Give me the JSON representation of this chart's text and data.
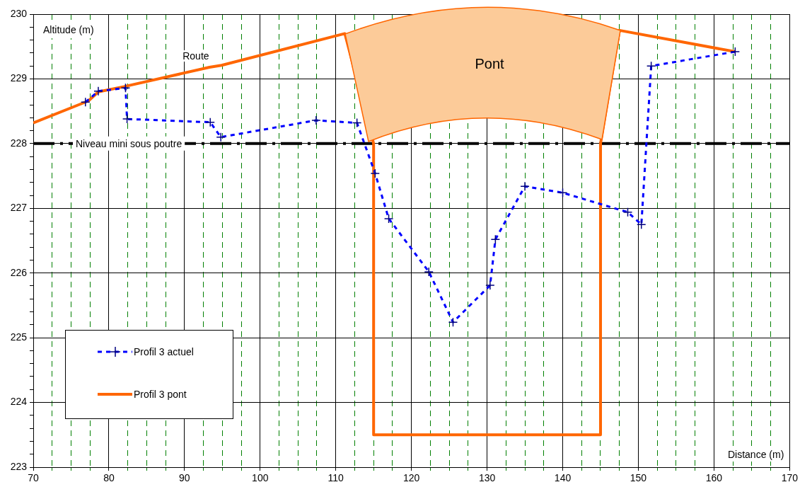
{
  "chart_data": {
    "type": "line",
    "xlabel": "Distance (m)",
    "ylabel": "Altitude (m)",
    "xlim": [
      70,
      170
    ],
    "xticks": [
      70,
      {
        "value": 72.5,
        "label": null
      },
      {
        "value": 75,
        "label": null
      },
      {
        "value": 77.5,
        "label": null
      },
      80,
      {
        "value": 82.5,
        "label": null
      },
      {
        "value": 85,
        "label": null
      },
      {
        "value": 87.5,
        "label": null
      },
      90,
      {
        "value": 92.5,
        "label": null
      },
      {
        "value": 95,
        "label": null
      },
      {
        "value": 97.5,
        "label": null
      },
      100,
      {
        "value": 102.5,
        "label": null
      },
      {
        "value": 105,
        "label": null
      },
      {
        "value": 107.5,
        "label": null
      },
      110,
      {
        "value": 112.5,
        "label": null
      },
      {
        "value": 115,
        "label": null
      },
      {
        "value": 117.5,
        "label": null
      },
      120,
      {
        "value": 122.5,
        "label": null
      },
      {
        "value": 125,
        "label": null
      },
      {
        "value": 127.5,
        "label": null
      },
      130,
      {
        "value": 132.5,
        "label": null
      },
      {
        "value": 135,
        "label": null
      },
      {
        "value": 137.5,
        "label": null
      },
      140,
      {
        "value": 142.5,
        "label": null
      },
      {
        "value": 145,
        "label": null
      },
      {
        "value": 147.5,
        "label": null
      },
      150,
      {
        "value": 152.5,
        "label": null
      },
      {
        "value": 155,
        "label": null
      },
      {
        "value": 157.5,
        "label": null
      },
      160,
      {
        "value": 162.5,
        "label": null
      },
      {
        "value": 165,
        "label": null
      },
      {
        "value": 167.5,
        "label": null
      },
      170
    ],
    "ylim": [
      223,
      230
    ],
    "yticks": [
      223,
      {
        "value": 223.2,
        "label": null
      },
      {
        "value": 223.4,
        "label": null
      },
      {
        "value": 223.6,
        "label": null
      },
      {
        "value": 223.8,
        "label": null
      },
      224,
      {
        "value": 224.2,
        "label": null
      },
      {
        "value": 224.4,
        "label": null
      },
      {
        "value": 224.6,
        "label": null
      },
      {
        "value": 224.8,
        "label": null
      },
      225,
      {
        "value": 225.2,
        "label": null
      },
      {
        "value": 225.4,
        "label": null
      },
      {
        "value": 225.6,
        "label": null
      },
      {
        "value": 225.8,
        "label": null
      },
      226,
      {
        "value": 226.2,
        "label": null
      },
      {
        "value": 226.4,
        "label": null
      },
      {
        "value": 226.6,
        "label": null
      },
      {
        "value": 226.8,
        "label": null
      },
      227,
      {
        "value": 227.2,
        "label": null
      },
      {
        "value": 227.4,
        "label": null
      },
      {
        "value": 227.6,
        "label": null
      },
      {
        "value": 227.8,
        "label": null
      },
      228,
      {
        "value": 228.2,
        "label": null
      },
      {
        "value": 228.4,
        "label": null
      },
      {
        "value": 228.6,
        "label": null
      },
      {
        "value": 228.8,
        "label": null
      },
      229,
      {
        "value": 229.2,
        "label": null
      },
      {
        "value": 229.4,
        "label": null
      },
      {
        "value": 229.6,
        "label": null
      },
      {
        "value": 229.8,
        "label": null
      },
      230
    ],
    "grid": true,
    "legend": "bottom left",
    "series": [
      {
        "name": "Profil 3 actuel",
        "color": "#0000ff",
        "marker": "cross",
        "line_style": "dashed",
        "x": [
          76.9,
          78.6,
          82.2,
          82.4,
          93.4,
          94.8,
          107.4,
          112.8,
          115.2,
          117.0,
          122.3,
          125.5,
          130.4,
          131.1,
          135.0,
          140.0,
          148.6,
          150.4,
          151.7,
          162.8
        ],
        "values": [
          228.64,
          228.81,
          228.86,
          228.38,
          228.33,
          228.1,
          228.36,
          228.32,
          227.54,
          226.84,
          226.02,
          225.24,
          225.81,
          226.52,
          227.34,
          227.24,
          226.94,
          226.75,
          229.2,
          229.42
        ]
      },
      {
        "name": "Profil 3 pont",
        "color": "#ff6600",
        "marker": "none",
        "line_style": "solid",
        "x": [
          70,
          77.3,
          78.6,
          82.0,
          93.3,
          94.9,
          111.2,
          115,
          115,
          145,
          145,
          147.5,
          162.8
        ],
        "values": [
          228.32,
          228.66,
          228.8,
          228.88,
          229.18,
          229.21,
          229.7,
          228.0,
          223.5,
          223.5,
          228.0,
          229.75,
          229.42
        ]
      }
    ],
    "ref_lines": [
      {
        "axis": "y",
        "value": 228,
        "label": "Niveau mini sous poutre",
        "color": "#000000",
        "line_style": "dashed"
      }
    ],
    "annotations": [
      {
        "text": "Route",
        "x": 91.5,
        "y": 229.35
      },
      "Pont"
    ]
  }
}
